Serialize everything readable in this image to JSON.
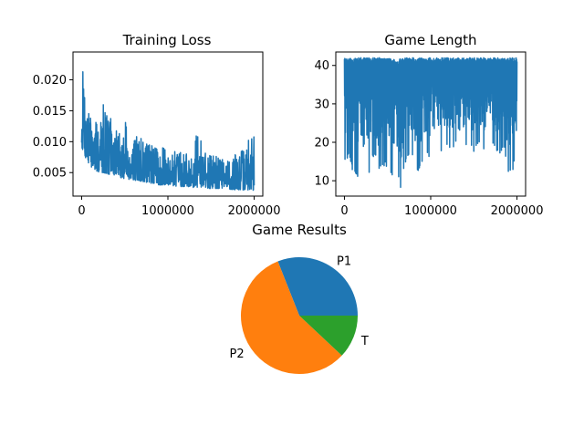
{
  "chart_data": [
    {
      "type": "line",
      "title": "Training Loss",
      "xlabel": "",
      "ylabel": "",
      "xlim": [
        -100000,
        2100000
      ],
      "ylim": [
        0.0012,
        0.0245
      ],
      "xticks": [
        0,
        1000000,
        2000000
      ],
      "xtick_labels": [
        "0",
        "1000000",
        "2000000"
      ],
      "yticks": [
        0.005,
        0.01,
        0.015,
        0.02
      ],
      "ytick_labels": [
        "0.005",
        "0.010",
        "0.015",
        "0.020"
      ],
      "grid": false,
      "color": "#1f77b4",
      "series": [
        {
          "x": [
            0,
            10000,
            20000,
            30000,
            40000,
            50000,
            60000,
            80000,
            100000,
            120000,
            150000,
            200000,
            250000,
            300000,
            350000,
            400000,
            450000,
            500000,
            600000,
            700000,
            800000,
            900000,
            1000000,
            1100000,
            1200000,
            1300000,
            1350000,
            1400000,
            1450000,
            1500000,
            1600000,
            1700000,
            1800000,
            1900000,
            1950000,
            2000000
          ],
          "y": [
            0.012,
            0.02,
            0.024,
            0.023,
            0.015,
            0.016,
            0.014,
            0.013,
            0.01,
            0.012,
            0.011,
            0.009,
            0.012,
            0.01,
            0.011,
            0.009,
            0.008,
            0.01,
            0.008,
            0.009,
            0.007,
            0.007,
            0.006,
            0.006,
            0.005,
            0.005,
            0.013,
            0.006,
            0.005,
            0.005,
            0.005,
            0.004,
            0.004,
            0.005,
            0.011,
            0.004
          ],
          "y_min": [
            0.0095,
            0.0085,
            0.0095,
            0.009,
            0.0075,
            0.007,
            0.0065,
            0.0062,
            0.006,
            0.0058,
            0.0055,
            0.005,
            0.005,
            0.0048,
            0.0045,
            0.0045,
            0.0042,
            0.004,
            0.0038,
            0.0035,
            0.0033,
            0.003,
            0.003,
            0.0028,
            0.0027,
            0.0026,
            0.0026,
            0.0025,
            0.0025,
            0.0024,
            0.0024,
            0.0023,
            0.0022,
            0.0022,
            0.0022,
            0.0021
          ],
          "y_max": [
            0.014,
            0.0205,
            0.0238,
            0.0235,
            0.0165,
            0.017,
            0.016,
            0.015,
            0.0145,
            0.014,
            0.0135,
            0.0125,
            0.017,
            0.0145,
            0.0135,
            0.0125,
            0.0115,
            0.0135,
            0.011,
            0.0105,
            0.0095,
            0.009,
            0.009,
            0.0085,
            0.008,
            0.008,
            0.0135,
            0.0085,
            0.008,
            0.008,
            0.0075,
            0.007,
            0.0085,
            0.009,
            0.0115,
            0.011
          ]
        }
      ]
    },
    {
      "type": "line",
      "title": "Game Length",
      "xlabel": "",
      "ylabel": "",
      "xlim": [
        -100000,
        2100000
      ],
      "ylim": [
        6,
        43.5
      ],
      "xticks": [
        0,
        1000000,
        2000000
      ],
      "xtick_labels": [
        "0",
        "1000000",
        "2000000"
      ],
      "yticks": [
        10,
        20,
        30,
        40
      ],
      "ytick_labels": [
        "10",
        "20",
        "30",
        "40"
      ],
      "grid": false,
      "color": "#1f77b4",
      "series": [
        {
          "x": [
            0,
            50000,
            100000,
            150000,
            200000,
            250000,
            300000,
            350000,
            400000,
            450000,
            500000,
            550000,
            600000,
            650000,
            700000,
            750000,
            800000,
            850000,
            900000,
            950000,
            1000000,
            1050000,
            1100000,
            1150000,
            1200000,
            1250000,
            1300000,
            1350000,
            1400000,
            1450000,
            1500000,
            1550000,
            1600000,
            1650000,
            1700000,
            1750000,
            1800000,
            1850000,
            1900000,
            1950000,
            2000000
          ],
          "y_min": [
            15,
            16,
            12,
            11,
            12,
            13,
            11,
            9,
            12,
            14,
            13,
            11,
            15,
            7,
            14,
            16,
            17,
            12,
            15,
            18,
            14,
            17,
            16,
            18,
            19,
            18,
            20,
            16,
            18,
            19,
            17,
            20,
            18,
            19,
            21,
            18,
            17,
            19,
            11,
            12,
            18
          ],
          "y_max": [
            42,
            42,
            42,
            42,
            42,
            42,
            42,
            42,
            42,
            42,
            42,
            42,
            41,
            42,
            42,
            42,
            42,
            42,
            42,
            42,
            42,
            42,
            42,
            42,
            42,
            42,
            42,
            42,
            42,
            42,
            42,
            42,
            42,
            42,
            42,
            42,
            42,
            42,
            42,
            42,
            42
          ]
        }
      ]
    },
    {
      "type": "pie",
      "title": "Game Results",
      "labels": [
        "P1",
        "P2",
        "T"
      ],
      "values": [
        0.31,
        0.57,
        0.12
      ],
      "colors": [
        "#1f77b4",
        "#ff7f0e",
        "#2ca02c"
      ],
      "start_angle_deg": 0,
      "direction": "counterclockwise"
    }
  ]
}
